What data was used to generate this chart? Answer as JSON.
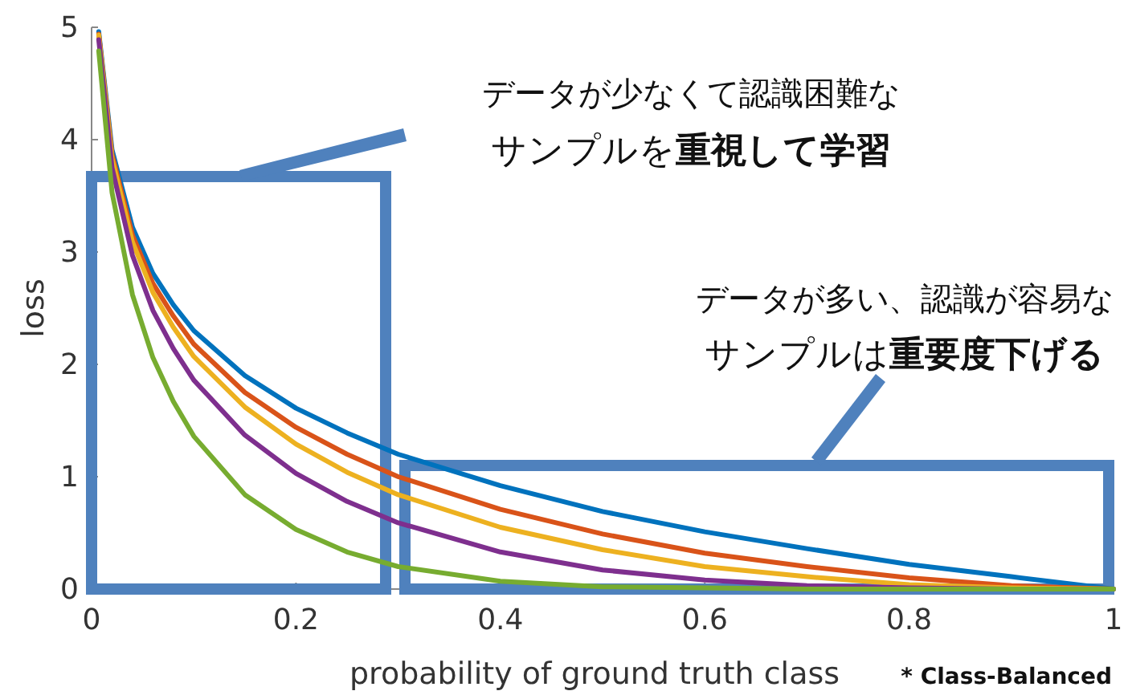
{
  "chart_data": {
    "type": "line",
    "xlabel": "probability of ground truth class",
    "ylabel": "loss",
    "x": [
      0.007,
      0.02,
      0.04,
      0.06,
      0.08,
      0.1,
      0.15,
      0.2,
      0.25,
      0.3,
      0.4,
      0.5,
      0.6,
      0.7,
      0.8,
      0.9,
      1.0
    ],
    "series": [
      {
        "color": "#0072bd",
        "values": [
          4.96,
          3.91,
          3.22,
          2.81,
          2.53,
          2.3,
          1.9,
          1.61,
          1.39,
          1.2,
          0.92,
          0.69,
          0.51,
          0.36,
          0.22,
          0.11,
          0
        ]
      },
      {
        "color": "#d95319",
        "values": [
          4.94,
          3.87,
          3.15,
          2.72,
          2.43,
          2.18,
          1.75,
          1.44,
          1.2,
          1.0,
          0.71,
          0.49,
          0.32,
          0.2,
          0.1,
          0.03,
          0
        ]
      },
      {
        "color": "#edb120",
        "values": [
          4.93,
          3.83,
          3.09,
          2.64,
          2.33,
          2.07,
          1.62,
          1.29,
          1.04,
          0.84,
          0.55,
          0.35,
          0.2,
          0.11,
          0.04,
          0.01,
          0
        ]
      },
      {
        "color": "#7e2f8e",
        "values": [
          4.89,
          3.75,
          2.97,
          2.48,
          2.14,
          1.86,
          1.37,
          1.03,
          0.78,
          0.59,
          0.33,
          0.17,
          0.08,
          0.03,
          0.01,
          0,
          0
        ]
      },
      {
        "color": "#77ac30",
        "values": [
          4.79,
          3.53,
          2.62,
          2.06,
          1.67,
          1.36,
          0.84,
          0.53,
          0.33,
          0.2,
          0.07,
          0.02,
          0.01,
          0,
          0,
          0,
          0
        ]
      }
    ],
    "xlim": [
      0,
      1
    ],
    "xticks": [
      0,
      0.2,
      0.4,
      0.6,
      0.8,
      1
    ],
    "ylim": [
      0,
      5
    ],
    "yticks": [
      0,
      1,
      2,
      3,
      4,
      5
    ],
    "annotations": [
      "データが少なくて認識困難な",
      "サンプルを重視して学習",
      "データが多い、認識が容易な",
      "サンプルは重要度下げる",
      "* Class-Balanced"
    ]
  }
}
